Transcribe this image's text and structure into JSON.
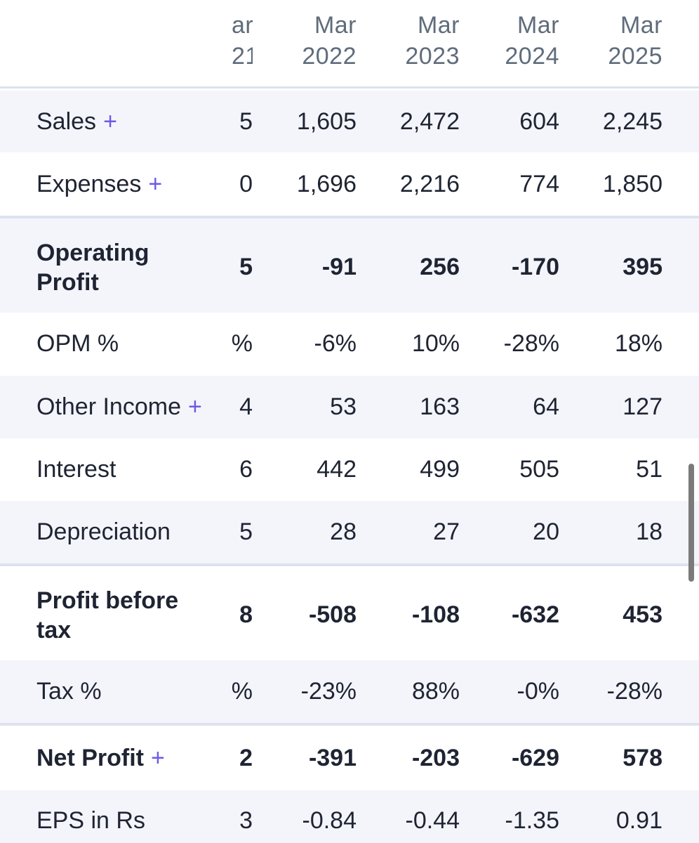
{
  "columns": [
    {
      "month": "ar",
      "year": "21"
    },
    {
      "month": "Mar",
      "year": "2022"
    },
    {
      "month": "Mar",
      "year": "2023"
    },
    {
      "month": "Mar",
      "year": "2024"
    },
    {
      "month": "Mar",
      "year": "2025"
    }
  ],
  "plus_symbol": "+",
  "rows": [
    {
      "label": "Sales",
      "values": [
        "5",
        "1,605",
        "2,472",
        "604",
        "2,245"
      ]
    },
    {
      "label": "Expenses",
      "values": [
        "0",
        "1,696",
        "2,216",
        "774",
        "1,850"
      ]
    },
    {
      "label_line1": "Operating",
      "label_line2": "Profit",
      "values": [
        "5",
        "-91",
        "256",
        "-170",
        "395"
      ]
    },
    {
      "label": "OPM %",
      "values": [
        "%",
        "-6%",
        "10%",
        "-28%",
        "18%"
      ]
    },
    {
      "label": "Other Income",
      "values": [
        "4",
        "53",
        "163",
        "64",
        "127"
      ]
    },
    {
      "label": "Interest",
      "values": [
        "6",
        "442",
        "499",
        "505",
        "51"
      ]
    },
    {
      "label": "Depreciation",
      "values": [
        "5",
        "28",
        "27",
        "20",
        "18"
      ]
    },
    {
      "label_line1": "Profit before",
      "label_line2": "tax",
      "values": [
        "8",
        "-508",
        "-108",
        "-632",
        "453"
      ]
    },
    {
      "label": "Tax %",
      "values": [
        "%",
        "-23%",
        "88%",
        "-0%",
        "-28%"
      ]
    },
    {
      "label": "Net Profit",
      "values": [
        "2",
        "-391",
        "-203",
        "-629",
        "578"
      ]
    },
    {
      "label": "EPS in Rs",
      "values": [
        "3",
        "-0.84",
        "-0.44",
        "-1.35",
        "0.91"
      ]
    }
  ]
}
